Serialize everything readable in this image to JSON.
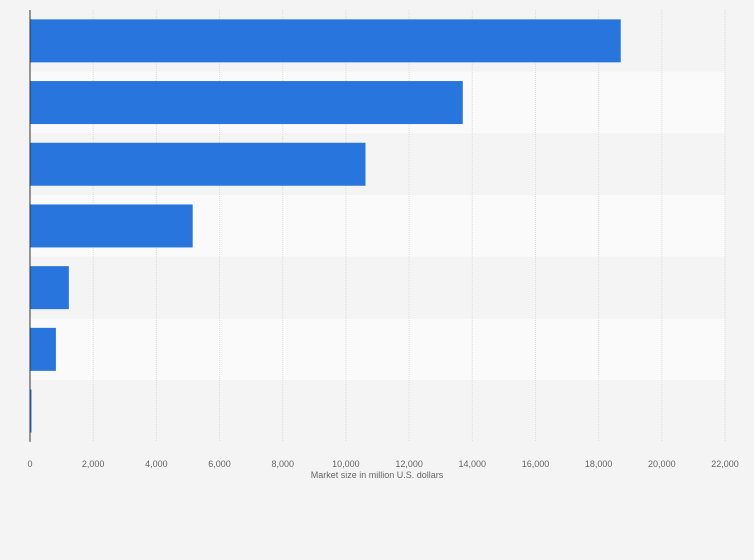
{
  "chart_data": {
    "type": "bar",
    "orientation": "horizontal",
    "categories": [
      "",
      "",
      "",
      "",
      "",
      "",
      ""
    ],
    "values": [
      18700,
      13700,
      10620,
      5150,
      1230,
      820,
      40
    ],
    "xlabel": "Market size in million U.S. dollars",
    "ylabel": "",
    "xlim": [
      0,
      22000
    ],
    "x_ticks": [
      0,
      2000,
      4000,
      6000,
      8000,
      10000,
      12000,
      14000,
      16000,
      18000,
      20000,
      22000
    ],
    "x_tick_labels": [
      "0",
      "2,000",
      "4,000",
      "6,000",
      "8,000",
      "10,000",
      "12,000",
      "14,000",
      "16,000",
      "18,000",
      "20,000",
      "22,000"
    ],
    "grid": true,
    "legend": "none",
    "bar_color": "#2876dd",
    "band_colors": [
      "#f4f4f4",
      "#fafafa"
    ],
    "grid_color": "#dddddd",
    "axis_color": "#333333"
  }
}
